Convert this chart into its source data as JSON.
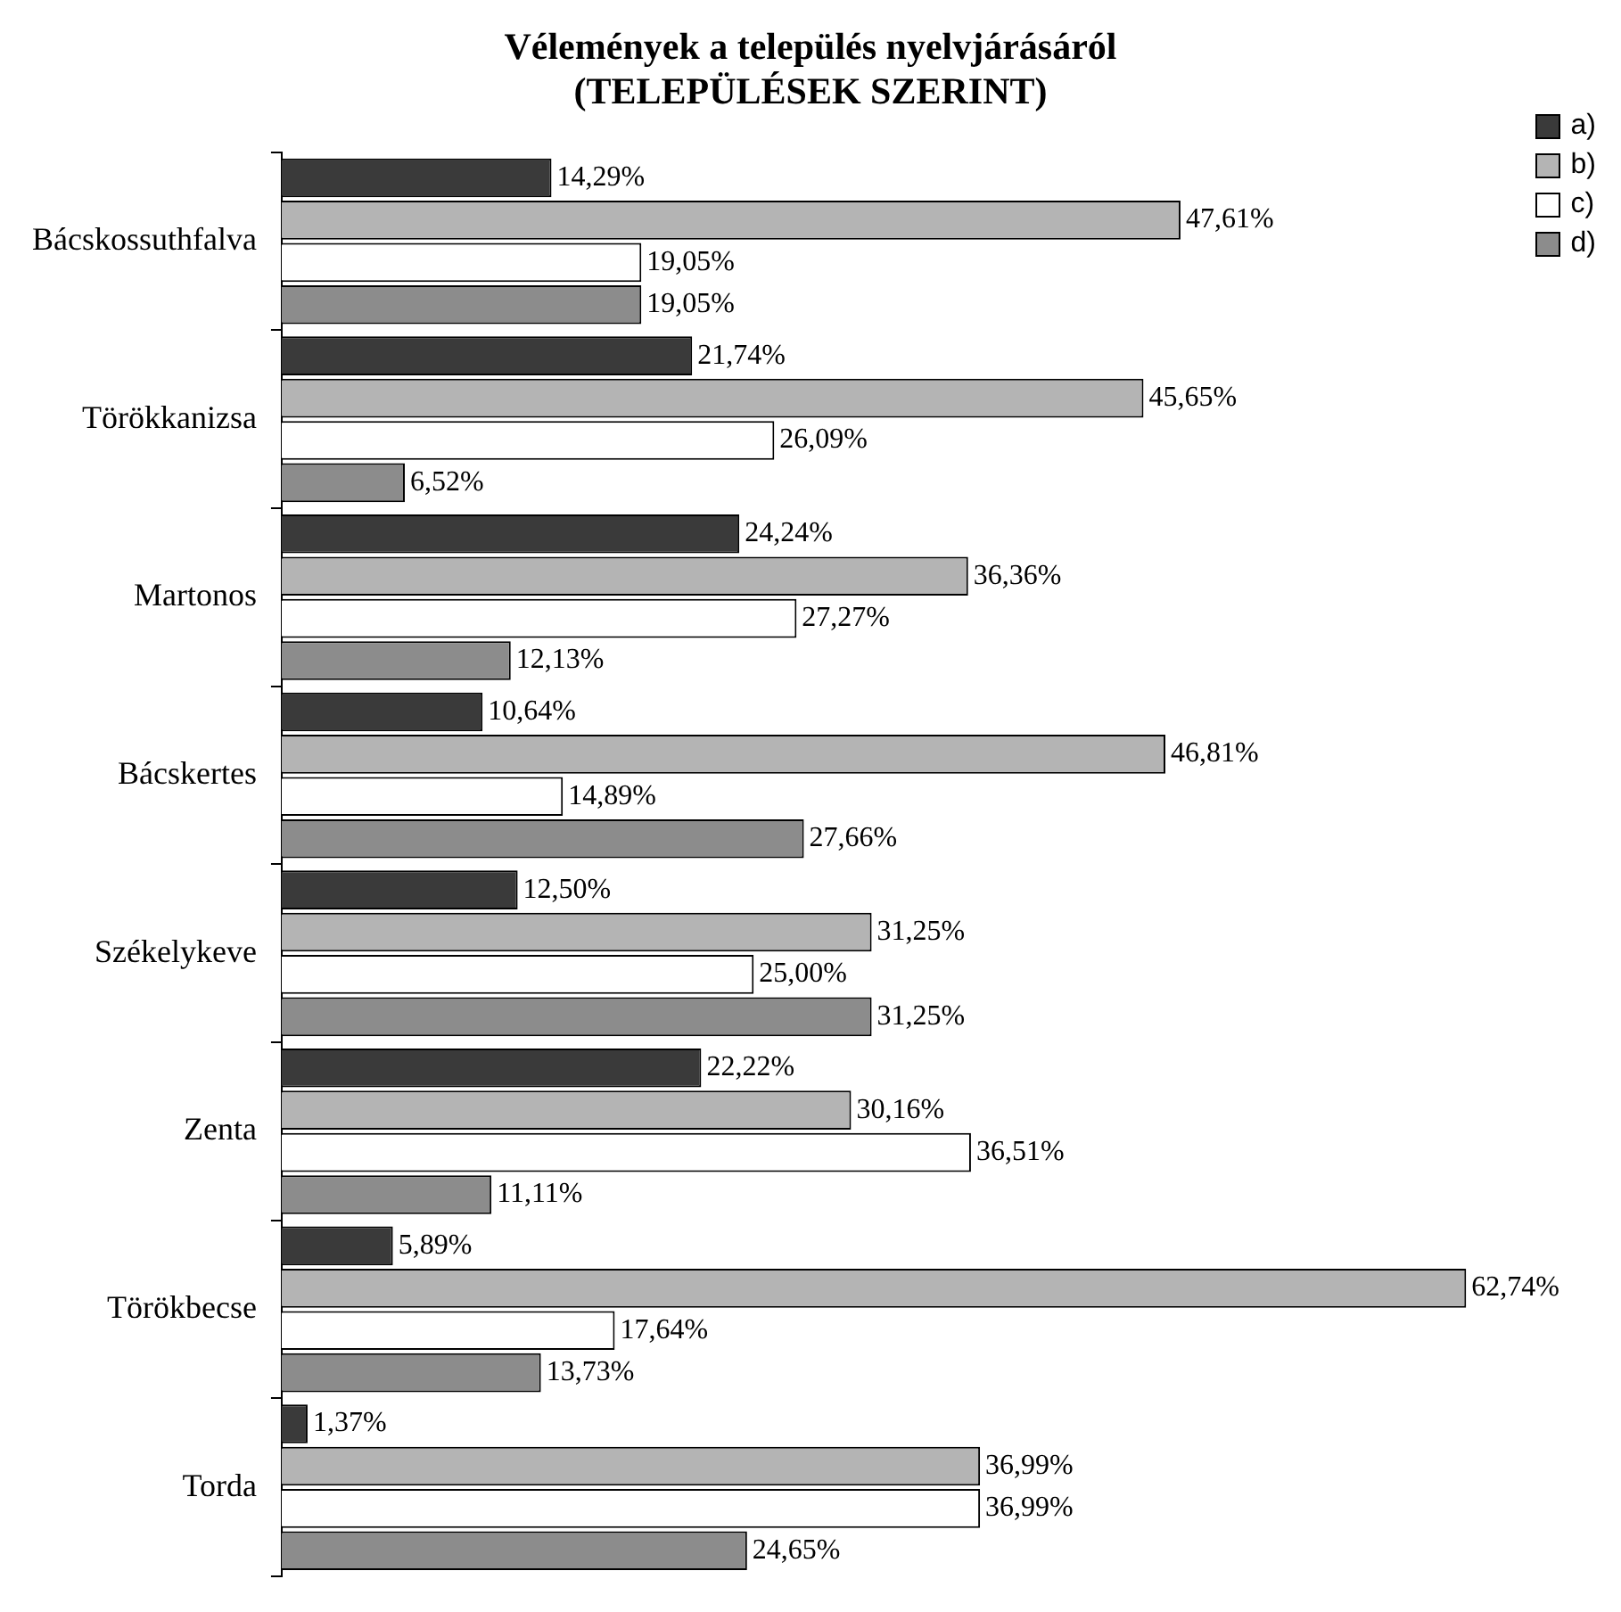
{
  "chart_data": {
    "type": "bar",
    "orientation": "horizontal",
    "title": "Vélemények a település nyelvjárásáról",
    "subtitle": "(TELEPÜLÉSEK SZERINT)",
    "categories": [
      "Bácskossuthfalva",
      "Törökkanizsa",
      "Martonos",
      "Bácskertes",
      "Székelykeve",
      "Zenta",
      "Törökbecse",
      "Torda"
    ],
    "series": [
      {
        "name": "a)",
        "color": "#3a3a3a",
        "values": [
          14.29,
          21.74,
          24.24,
          10.64,
          12.5,
          22.22,
          5.89,
          1.37
        ],
        "value_labels": [
          "14,29%",
          "21,74%",
          "24,24%",
          "10,64%",
          "12,50%",
          "22,22%",
          "5,89%",
          "1,37%"
        ]
      },
      {
        "name": "b)",
        "color": "#b4b4b4",
        "values": [
          47.61,
          45.65,
          36.36,
          46.81,
          31.25,
          30.16,
          62.74,
          36.99
        ],
        "value_labels": [
          "47,61%",
          "45,65%",
          "36,36%",
          "46,81%",
          "31,25%",
          "30,16%",
          "62,74%",
          "36,99%"
        ]
      },
      {
        "name": "c)",
        "color": "#ffffff",
        "values": [
          19.05,
          26.09,
          27.27,
          14.89,
          25.0,
          36.51,
          17.64,
          36.99
        ],
        "value_labels": [
          "19,05%",
          "26,09%",
          "27,27%",
          "14,89%",
          "25,00%",
          "36,51%",
          "17,64%",
          "36,99%"
        ]
      },
      {
        "name": "d)",
        "color": "#8c8c8c",
        "values": [
          19.05,
          6.52,
          12.13,
          27.66,
          31.25,
          11.11,
          13.73,
          24.65
        ],
        "value_labels": [
          "19,05%",
          "6,52%",
          "12,13%",
          "27,66%",
          "31,25%",
          "11,11%",
          "13,73%",
          "24,65%"
        ]
      }
    ],
    "legend": "top right",
    "tick_labels": "y"
  }
}
